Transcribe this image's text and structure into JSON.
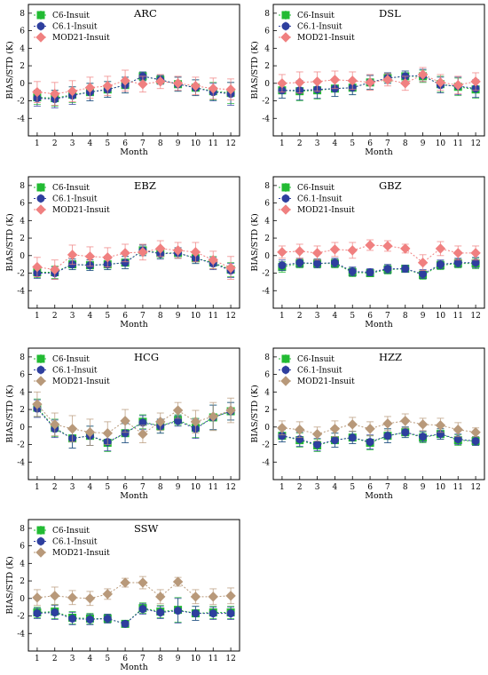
{
  "figure": {
    "xlabel": "Month",
    "ylabel": "BIAS/STD (K)",
    "legend_labels": [
      "C6-Insuit",
      "C6.1-Insuit",
      "MOD21-Insuit"
    ]
  },
  "chart_data": [
    {
      "type": "line",
      "title": "ARC",
      "xlabel": "Month",
      "ylabel": "BIAS/STD (K)",
      "x": [
        1,
        2,
        3,
        4,
        5,
        6,
        7,
        8,
        9,
        10,
        11,
        12
      ],
      "xlim": [
        0.5,
        12.5
      ],
      "ylim": [
        -6,
        9
      ],
      "yticks": [
        -4,
        -2,
        0,
        2,
        4,
        6,
        8
      ],
      "series": [
        {
          "name": "C6-Insuit",
          "color": "#22bb33",
          "marker": "square",
          "values": [
            -1.6,
            -1.7,
            -1.3,
            -1.0,
            -0.7,
            -0.2,
            0.8,
            0.4,
            -0.1,
            -0.5,
            -0.9,
            -1.1
          ],
          "std": [
            0.8,
            0.9,
            0.9,
            1.0,
            0.9,
            0.9,
            0.5,
            0.5,
            0.8,
            0.9,
            1.0,
            1.2
          ]
        },
        {
          "name": "C6.1-Insuit",
          "color": "#2e3f9e",
          "marker": "circle",
          "values": [
            -1.7,
            -1.8,
            -1.4,
            -1.0,
            -0.7,
            -0.2,
            0.8,
            0.4,
            -0.1,
            -0.5,
            -1.0,
            -1.2
          ],
          "std": [
            0.9,
            1.0,
            1.0,
            1.0,
            0.9,
            0.9,
            0.5,
            0.5,
            0.8,
            0.9,
            1.0,
            1.3
          ]
        },
        {
          "name": "MOD21-Insuit",
          "color": "#f08080",
          "marker": "diamond",
          "values": [
            -1.0,
            -1.2,
            -0.9,
            -0.5,
            -0.3,
            0.3,
            -0.1,
            0.2,
            0.0,
            -0.3,
            -0.6,
            -0.7
          ],
          "std": [
            1.2,
            1.3,
            1.2,
            1.2,
            1.1,
            1.2,
            0.9,
            0.8,
            0.8,
            1.0,
            1.2,
            1.2
          ]
        }
      ]
    },
    {
      "type": "line",
      "title": "DSL",
      "xlabel": "Month",
      "ylabel": "BIAS/STD (K)",
      "x": [
        1,
        2,
        3,
        4,
        5,
        6,
        7,
        8,
        9,
        10,
        11,
        12
      ],
      "xlim": [
        0.5,
        12.5
      ],
      "ylim": [
        -6,
        9
      ],
      "yticks": [
        -4,
        -2,
        0,
        2,
        4,
        6,
        8
      ],
      "series": [
        {
          "name": "C6-Insuit",
          "color": "#22bb33",
          "marker": "square",
          "values": [
            -0.8,
            -0.9,
            -0.8,
            -0.6,
            -0.5,
            0.1,
            0.6,
            0.8,
            0.8,
            -0.1,
            -0.4,
            -0.7
          ],
          "std": [
            0.9,
            1.1,
            1.0,
            0.9,
            0.8,
            0.8,
            0.6,
            0.6,
            0.7,
            0.9,
            1.0,
            1.0
          ]
        },
        {
          "name": "C6.1-Insuit",
          "color": "#2e3f9e",
          "marker": "circle",
          "values": [
            -0.8,
            -0.8,
            -0.7,
            -0.6,
            -0.5,
            0.1,
            0.6,
            0.8,
            0.9,
            -0.2,
            -0.3,
            -0.6
          ],
          "std": [
            0.9,
            1.1,
            1.0,
            0.9,
            0.8,
            0.8,
            0.6,
            0.6,
            0.7,
            0.9,
            1.0,
            1.0
          ]
        },
        {
          "name": "MOD21-Insuit",
          "color": "#f08080",
          "marker": "diamond",
          "values": [
            0.0,
            0.1,
            0.2,
            0.4,
            0.3,
            0.1,
            0.4,
            0.0,
            1.0,
            0.1,
            -0.2,
            0.2
          ],
          "std": [
            1.0,
            1.2,
            1.1,
            1.0,
            1.0,
            0.9,
            0.7,
            0.8,
            0.8,
            0.9,
            1.0,
            1.0
          ]
        }
      ]
    },
    {
      "type": "line",
      "title": "EBZ",
      "xlabel": "Month",
      "ylabel": "BIAS/STD (K)",
      "x": [
        1,
        2,
        3,
        4,
        5,
        6,
        7,
        8,
        9,
        10,
        11,
        12
      ],
      "xlim": [
        0.5,
        12.5
      ],
      "ylim": [
        -6,
        9
      ],
      "yticks": [
        -4,
        -2,
        0,
        2,
        4,
        6,
        8
      ],
      "series": [
        {
          "name": "C6-Insuit",
          "color": "#22bb33",
          "marker": "square",
          "values": [
            -1.9,
            -1.9,
            -1.0,
            -1.1,
            -1.0,
            -0.8,
            0.6,
            0.3,
            0.3,
            -0.3,
            -0.8,
            -1.6
          ],
          "std": [
            0.6,
            0.7,
            0.6,
            0.6,
            0.6,
            0.7,
            0.6,
            0.6,
            0.6,
            0.6,
            0.7,
            0.8
          ]
        },
        {
          "name": "C6.1-Insuit",
          "color": "#2e3f9e",
          "marker": "circle",
          "values": [
            -2.0,
            -2.0,
            -1.0,
            -1.1,
            -1.0,
            -0.8,
            0.6,
            0.2,
            0.3,
            -0.3,
            -0.9,
            -1.7
          ],
          "std": [
            0.6,
            0.7,
            0.6,
            0.6,
            0.6,
            0.7,
            0.6,
            0.6,
            0.6,
            0.6,
            0.7,
            0.8
          ]
        },
        {
          "name": "MOD21-Insuit",
          "color": "#f08080",
          "marker": "diamond",
          "values": [
            -1.3,
            -1.6,
            0.1,
            -0.1,
            -0.2,
            0.3,
            0.4,
            0.8,
            0.6,
            0.4,
            -0.5,
            -1.4
          ],
          "std": [
            1.1,
            1.1,
            1.1,
            1.1,
            1.1,
            1.0,
            0.9,
            0.9,
            0.9,
            1.1,
            1.0,
            1.3
          ]
        }
      ]
    },
    {
      "type": "line",
      "title": "GBZ",
      "xlabel": "Month",
      "ylabel": "BIAS/STD (K)",
      "x": [
        1,
        2,
        3,
        4,
        5,
        6,
        7,
        8,
        9,
        10,
        11,
        12
      ],
      "xlim": [
        0.5,
        12.5
      ],
      "ylim": [
        -6,
        9
      ],
      "yticks": [
        -4,
        -2,
        0,
        2,
        4,
        6,
        8
      ],
      "series": [
        {
          "name": "C6-Insuit",
          "color": "#22bb33",
          "marker": "square",
          "values": [
            -1.3,
            -0.9,
            -0.9,
            -0.9,
            -1.9,
            -2.0,
            -1.6,
            -1.5,
            -2.2,
            -1.1,
            -0.9,
            -0.9
          ],
          "std": [
            0.6,
            0.5,
            0.5,
            0.5,
            0.5,
            0.4,
            0.5,
            0.4,
            0.5,
            0.5,
            0.5,
            0.6
          ]
        },
        {
          "name": "C6.1-Insuit",
          "color": "#2e3f9e",
          "marker": "circle",
          "values": [
            -1.1,
            -0.8,
            -0.9,
            -0.8,
            -1.8,
            -1.9,
            -1.5,
            -1.5,
            -2.1,
            -1.0,
            -0.8,
            -0.8
          ],
          "std": [
            0.6,
            0.5,
            0.5,
            0.5,
            0.5,
            0.4,
            0.5,
            0.4,
            0.5,
            0.5,
            0.5,
            0.6
          ]
        },
        {
          "name": "MOD21-Insuit",
          "color": "#f08080",
          "marker": "diamond",
          "values": [
            0.4,
            0.5,
            0.3,
            0.7,
            0.6,
            1.2,
            1.1,
            0.8,
            -0.8,
            0.8,
            0.3,
            0.3
          ],
          "std": [
            0.7,
            0.8,
            0.8,
            0.8,
            0.9,
            0.6,
            0.6,
            0.5,
            0.9,
            0.8,
            0.8,
            0.8
          ]
        }
      ]
    },
    {
      "type": "line",
      "title": "HCG",
      "xlabel": "Month",
      "ylabel": "BIAS/STD (K)",
      "x": [
        1,
        2,
        3,
        4,
        5,
        6,
        7,
        8,
        9,
        10,
        11,
        12
      ],
      "xlim": [
        0.5,
        12.5
      ],
      "ylim": [
        -6,
        9
      ],
      "yticks": [
        -4,
        -2,
        0,
        2,
        4,
        6,
        8
      ],
      "series": [
        {
          "name": "C6-Insuit",
          "color": "#22bb33",
          "marker": "square",
          "values": [
            2.2,
            -0.1,
            -1.3,
            -1.0,
            -1.8,
            -0.7,
            0.6,
            0.1,
            0.8,
            -0.1,
            1.1,
            1.8
          ],
          "std": [
            1.0,
            1.0,
            1.1,
            1.1,
            1.0,
            1.1,
            0.8,
            0.8,
            0.6,
            1.1,
            1.4,
            1.0
          ]
        },
        {
          "name": "C6.1-Insuit",
          "color": "#2e3f9e",
          "marker": "circle",
          "values": [
            2.1,
            -0.2,
            -1.3,
            -1.0,
            -1.7,
            -0.7,
            0.5,
            0.1,
            0.7,
            -0.2,
            1.1,
            1.8
          ],
          "std": [
            1.0,
            1.0,
            1.1,
            1.1,
            1.0,
            1.1,
            0.8,
            0.8,
            0.6,
            1.1,
            1.4,
            1.0
          ]
        },
        {
          "name": "MOD21-Insuit",
          "color": "#b8997a",
          "marker": "diamond",
          "values": [
            2.6,
            0.3,
            -0.2,
            -0.6,
            -0.7,
            0.7,
            -0.8,
            0.6,
            1.9,
            0.6,
            1.2,
            1.9
          ],
          "std": [
            1.4,
            1.3,
            1.5,
            1.5,
            1.3,
            1.3,
            1.0,
            1.0,
            0.9,
            1.3,
            1.6,
            1.4
          ]
        }
      ]
    },
    {
      "type": "line",
      "title": "HZZ",
      "xlabel": "Month",
      "ylabel": "BIAS/STD (K)",
      "x": [
        1,
        2,
        3,
        4,
        5,
        6,
        7,
        8,
        9,
        10,
        11,
        12
      ],
      "xlim": [
        0.5,
        12.5
      ],
      "ylim": [
        -6,
        9
      ],
      "yticks": [
        -4,
        -2,
        0,
        2,
        4,
        6,
        8
      ],
      "series": [
        {
          "name": "C6-Insuit",
          "color": "#22bb33",
          "marker": "square",
          "values": [
            -1.0,
            -1.5,
            -2.1,
            -1.5,
            -1.2,
            -1.8,
            -1.0,
            -0.6,
            -1.2,
            -0.8,
            -1.5,
            -1.6
          ],
          "std": [
            0.7,
            0.8,
            0.7,
            0.8,
            0.7,
            0.8,
            0.8,
            0.6,
            0.6,
            0.6,
            0.6,
            0.5
          ]
        },
        {
          "name": "C6.1-Insuit",
          "color": "#2e3f9e",
          "marker": "circle",
          "values": [
            -1.0,
            -1.4,
            -2.0,
            -1.5,
            -1.2,
            -1.7,
            -1.0,
            -0.6,
            -1.1,
            -0.8,
            -1.4,
            -1.6
          ],
          "std": [
            0.7,
            0.8,
            0.7,
            0.8,
            0.7,
            0.8,
            0.8,
            0.6,
            0.6,
            0.6,
            0.6,
            0.5
          ]
        },
        {
          "name": "MOD21-Insuit",
          "color": "#b8997a",
          "marker": "diamond",
          "values": [
            -0.1,
            -0.3,
            -0.8,
            -0.2,
            0.3,
            -0.2,
            0.4,
            0.7,
            0.3,
            0.2,
            -0.3,
            -0.6
          ],
          "std": [
            0.8,
            0.9,
            0.8,
            0.9,
            0.8,
            0.8,
            0.8,
            0.8,
            0.7,
            0.8,
            0.8,
            0.5
          ]
        }
      ]
    },
    {
      "type": "line",
      "title": "SSW",
      "xlabel": "Month",
      "ylabel": "BIAS/STD (K)",
      "x": [
        1,
        2,
        3,
        4,
        5,
        6,
        7,
        8,
        9,
        10,
        11,
        12
      ],
      "xlim": [
        0.5,
        12.5
      ],
      "ylim": [
        -6,
        9
      ],
      "yticks": [
        -4,
        -2,
        0,
        2,
        4,
        6,
        8
      ],
      "series": [
        {
          "name": "C6-Insuit",
          "color": "#22bb33",
          "marker": "square",
          "values": [
            -1.6,
            -1.5,
            -2.2,
            -2.3,
            -2.3,
            -2.9,
            -1.1,
            -1.5,
            -1.3,
            -1.7,
            -1.6,
            -1.6
          ],
          "std": [
            0.6,
            0.8,
            0.7,
            0.6,
            0.5,
            0.3,
            0.6,
            0.7,
            1.4,
            0.8,
            0.7,
            0.7
          ]
        },
        {
          "name": "C6.1-Insuit",
          "color": "#2e3f9e",
          "marker": "circle",
          "values": [
            -1.7,
            -1.6,
            -2.3,
            -2.4,
            -2.3,
            -2.9,
            -1.2,
            -1.6,
            -1.4,
            -1.7,
            -1.7,
            -1.7
          ],
          "std": [
            0.6,
            0.8,
            0.7,
            0.6,
            0.5,
            0.3,
            0.6,
            0.7,
            1.4,
            0.8,
            0.7,
            0.7
          ]
        },
        {
          "name": "MOD21-Insuit",
          "color": "#b8997a",
          "marker": "diamond",
          "values": [
            0.1,
            0.3,
            0.1,
            0.0,
            0.5,
            1.8,
            1.8,
            0.2,
            1.9,
            0.2,
            0.2,
            0.3
          ],
          "std": [
            0.9,
            1.0,
            0.8,
            0.8,
            0.6,
            0.5,
            0.7,
            0.8,
            0.5,
            0.8,
            0.9,
            0.9
          ]
        }
      ]
    }
  ]
}
